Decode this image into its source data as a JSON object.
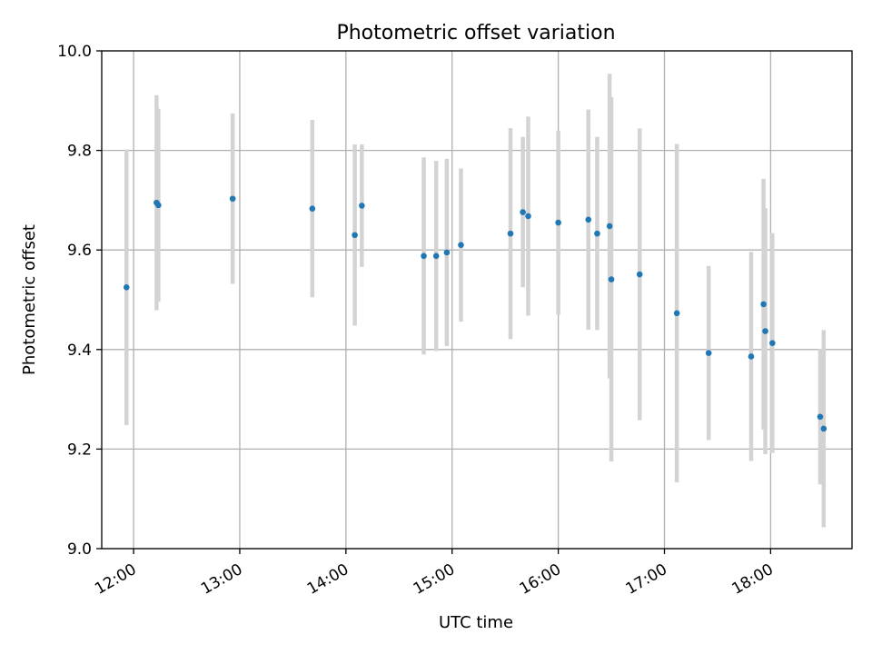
{
  "chart_data": {
    "type": "scatter",
    "title": "Photometric offset variation",
    "xlabel": "UTC time",
    "ylabel": "Photometric offset",
    "x_axis_type": "time",
    "xlim": [
      "11:42",
      "18:46"
    ],
    "ylim": [
      9.0,
      10.0
    ],
    "x_ticks": [
      "12:00",
      "13:00",
      "14:00",
      "15:00",
      "16:00",
      "17:00",
      "18:00"
    ],
    "y_ticks": [
      "9.0",
      "9.2",
      "9.4",
      "9.6",
      "9.8",
      "10.0"
    ],
    "grid": true,
    "legend": "none",
    "colors": {
      "point": "#1f77b4",
      "errorbar": "#d3d3d3"
    },
    "series": [
      {
        "points": [
          {
            "x": "11:56",
            "y": 9.525,
            "yerr": 0.277
          },
          {
            "x": "12:13",
            "y": 9.695,
            "yerr": 0.216
          },
          {
            "x": "12:14",
            "y": 9.69,
            "yerr": 0.194
          },
          {
            "x": "12:56",
            "y": 9.703,
            "yerr": 0.171
          },
          {
            "x": "13:41",
            "y": 9.683,
            "yerr": 0.178
          },
          {
            "x": "14:05",
            "y": 9.63,
            "yerr": 0.182
          },
          {
            "x": "14:09",
            "y": 9.689,
            "yerr": 0.123
          },
          {
            "x": "14:44",
            "y": 9.588,
            "yerr": 0.198
          },
          {
            "x": "14:51",
            "y": 9.588,
            "yerr": 0.191
          },
          {
            "x": "14:57",
            "y": 9.595,
            "yerr": 0.188
          },
          {
            "x": "15:05",
            "y": 9.61,
            "yerr": 0.154
          },
          {
            "x": "15:33",
            "y": 9.633,
            "yerr": 0.212
          },
          {
            "x": "15:40",
            "y": 9.676,
            "yerr": 0.151
          },
          {
            "x": "15:43",
            "y": 9.668,
            "yerr": 0.2
          },
          {
            "x": "16:00",
            "y": 9.655,
            "yerr": 0.185
          },
          {
            "x": "16:17",
            "y": 9.661,
            "yerr": 0.221
          },
          {
            "x": "16:22",
            "y": 9.633,
            "yerr": 0.194
          },
          {
            "x": "16:29",
            "y": 9.648,
            "yerr": 0.306
          },
          {
            "x": "16:30",
            "y": 9.541,
            "yerr": 0.366
          },
          {
            "x": "16:46",
            "y": 9.551,
            "yerr": 0.293
          },
          {
            "x": "17:07",
            "y": 9.473,
            "yerr": 0.34
          },
          {
            "x": "17:25",
            "y": 9.393,
            "yerr": 0.175
          },
          {
            "x": "17:49",
            "y": 9.386,
            "yerr": 0.21
          },
          {
            "x": "17:56",
            "y": 9.491,
            "yerr": 0.252
          },
          {
            "x": "17:57",
            "y": 9.437,
            "yerr": 0.247
          },
          {
            "x": "18:01",
            "y": 9.413,
            "yerr": 0.221
          },
          {
            "x": "18:28",
            "y": 9.265,
            "yerr": 0.136
          },
          {
            "x": "18:30",
            "y": 9.241,
            "yerr": 0.198
          }
        ]
      }
    ]
  }
}
